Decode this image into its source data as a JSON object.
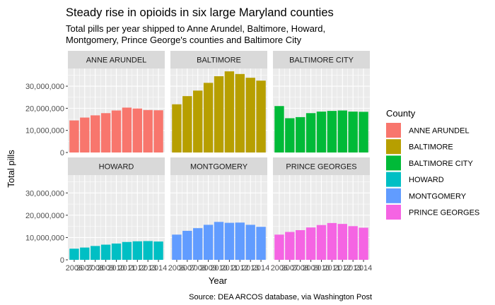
{
  "chart_data": {
    "type": "bar",
    "title": "Steady rise in opioids in six large Maryland counties",
    "subtitle_lines": [
      "Total pills per year shipped to Anne Arundel, Baltimore, Howard,",
      "Montgomery, Prince George's counties and Baltimore City"
    ],
    "xlabel": "Year",
    "ylabel": "Total pills",
    "caption": "Source: DEA ARCOS database, via Washington Post",
    "legend_title": "County",
    "legend_position": "right",
    "grid": true,
    "ylim": [
      0,
      38000000
    ],
    "yticks": [
      0,
      10000000,
      20000000,
      30000000
    ],
    "ytick_labels": [
      "0",
      "10,000,000",
      "20,000,000",
      "30,000,000"
    ],
    "x": [
      2006,
      2007,
      2008,
      2009,
      2010,
      2011,
      2012,
      2013,
      2014
    ],
    "xtick_labels": [
      "2006",
      "2007",
      "2008",
      "2009",
      "2010",
      "2011",
      "2012",
      "2013",
      "2014"
    ],
    "facets": [
      {
        "name": "ANNE ARUNDEL",
        "color": "#F8766D",
        "values": [
          14500000,
          15800000,
          16800000,
          17800000,
          19000000,
          20300000,
          19900000,
          19200000,
          19100000
        ]
      },
      {
        "name": "BALTIMORE",
        "color": "#B79F00",
        "values": [
          21800000,
          25500000,
          28000000,
          31500000,
          34500000,
          36700000,
          35500000,
          33800000,
          32500000
        ]
      },
      {
        "name": "BALTIMORE CITY",
        "color": "#00BA38",
        "values": [
          21000000,
          15500000,
          16000000,
          17800000,
          18500000,
          18800000,
          19000000,
          18500000,
          18400000
        ]
      },
      {
        "name": "HOWARD",
        "color": "#00BFC4",
        "values": [
          5000000,
          5500000,
          6200000,
          6800000,
          7300000,
          8000000,
          8300000,
          8400000,
          8200000
        ]
      },
      {
        "name": "MONTGOMERY",
        "color": "#619CFF",
        "values": [
          11300000,
          13000000,
          14200000,
          15700000,
          17000000,
          16600000,
          16700000,
          15700000,
          14800000
        ]
      },
      {
        "name": "PRINCE GEORGES",
        "color": "#F564E3",
        "values": [
          11300000,
          12500000,
          13300000,
          14500000,
          15600000,
          16500000,
          16100000,
          15100000,
          14400000
        ]
      }
    ]
  }
}
